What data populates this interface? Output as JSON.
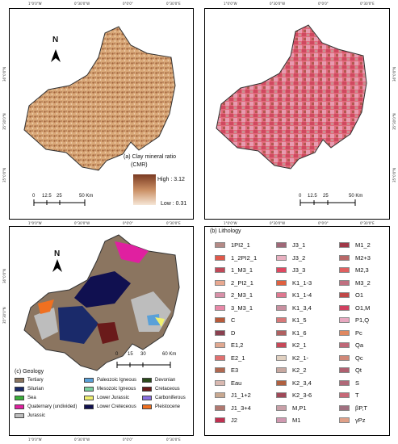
{
  "panel_a": {
    "title_line1": "(a) Clay mineral ratio",
    "title_line2": "(CMR)",
    "high": "High : 3.12",
    "low": "Low : 0.31",
    "north": "N",
    "scale": [
      "0",
      "12.5",
      "25",
      "50 Km"
    ],
    "top_ticks": [
      "1°0'0\"W",
      "0°30'0\"W",
      "0°0'0\"",
      "0°30'0\"E"
    ],
    "bottom_ticks": [
      "1°0'0\"W",
      "0°30'0\"W",
      "0°0'0\"",
      "0°30'0\"E"
    ],
    "left_ticks": [
      "36°0'0\"N",
      "35°30'0\"N",
      "35°0'0\"N",
      "34°30'0\"N"
    ],
    "colors": {
      "high": "#7a3a22",
      "low": "#f6e6d6"
    }
  },
  "panel_lith_map": {
    "top_ticks": [
      "1°0'0\"W",
      "0°30'0\"W",
      "0°0'0\"",
      "0°30'0\"E"
    ],
    "bottom_ticks": [
      "1°0'0\"W",
      "0°30'0\"W",
      "0°0'0\"",
      "0°30'0\"E"
    ],
    "right_ticks": [
      "36°0'0\"N",
      "35°30'0\"N",
      "35°0'0\"N",
      "34°30'0\"N"
    ],
    "north": "N",
    "scale": [
      "0",
      "12.5",
      "25",
      "50 Km"
    ]
  },
  "panel_c": {
    "title": "(c) Geology",
    "north": "N",
    "scale": [
      "0",
      "15",
      "30",
      "60 Km"
    ],
    "top_ticks": [
      "1°0'0\"W",
      "0°30'0\"W",
      "0°0'0\"",
      "0°30'0\"E"
    ],
    "bottom_ticks": [
      "1°0'0\"W",
      "0°30'0\"W",
      "0°0'0\"",
      "0°30'0\"E"
    ],
    "left_ticks": [
      "36°0'0\"N",
      "35°30'0\"N",
      "35°0'0\"N",
      "34°30'0\"N"
    ],
    "legend": [
      {
        "label": "Tertiary",
        "color": "#8b7560"
      },
      {
        "label": "Paleozoic Igneous",
        "color": "#5aa0d8"
      },
      {
        "label": "Devonian",
        "color": "#2a4a1a"
      },
      {
        "label": "Silurian",
        "color": "#1a2a6a"
      },
      {
        "label": "Mesozoic Igneous",
        "color": "#7ad0a0"
      },
      {
        "label": "Cretaceous",
        "color": "#6a1a1a"
      },
      {
        "label": "Sea",
        "color": "#3ab03a"
      },
      {
        "label": "Lower Jurassic",
        "color": "#f0f070"
      },
      {
        "label": "Carboniferous",
        "color": "#8a70e0"
      },
      {
        "label": "Quaternary (undivided)",
        "color": "#e020a0"
      },
      {
        "label": "Lower Creteceous",
        "color": "#101050"
      },
      {
        "label": "Pleistocene",
        "color": "#f07020"
      },
      {
        "label": "Jurassic",
        "color": "#bdbdbd"
      }
    ]
  },
  "panel_b": {
    "title": "(b) Lithology",
    "columns": [
      [
        {
          "label": "1PI2_1",
          "color": "#b48a86"
        },
        {
          "label": "1_2PI2_1",
          "color": "#e0584a"
        },
        {
          "label": "1_M3_1",
          "color": "#c04858"
        },
        {
          "label": "2_PI2_1",
          "color": "#e8a890"
        },
        {
          "label": "2_M3_1",
          "color": "#d890a8"
        },
        {
          "label": "3_M3_1",
          "color": "#e888a8"
        },
        {
          "label": "C",
          "color": "#b85a3a"
        },
        {
          "label": "D",
          "color": "#8a4050"
        },
        {
          "label": "E1,2",
          "color": "#e0a890"
        },
        {
          "label": "E2_1",
          "color": "#e07070"
        },
        {
          "label": "E3",
          "color": "#b06850"
        },
        {
          "label": "Eau",
          "color": "#d8b8b0"
        },
        {
          "label": "J1_1+2",
          "color": "#c8a890"
        },
        {
          "label": "J1_3+4",
          "color": "#b07870"
        },
        {
          "label": "J2",
          "color": "#c03050"
        }
      ],
      [
        {
          "label": "J3_1",
          "color": "#a06878"
        },
        {
          "label": "J3_2",
          "color": "#e8b0c0"
        },
        {
          "label": "J3_3",
          "color": "#e04860"
        },
        {
          "label": "K1_1-3",
          "color": "#e06040"
        },
        {
          "label": "K1_1-4",
          "color": "#e07890"
        },
        {
          "label": "K1_3,4",
          "color": "#c890a0"
        },
        {
          "label": "K1_5",
          "color": "#d87878"
        },
        {
          "label": "K1_6",
          "color": "#b06060"
        },
        {
          "label": "K2_1",
          "color": "#c84858"
        },
        {
          "label": "K2_1-",
          "color": "#e0d0c0"
        },
        {
          "label": "K2_2",
          "color": "#c8a8a0"
        },
        {
          "label": "K2_3,4",
          "color": "#b06040"
        },
        {
          "label": "K2_3-6",
          "color": "#a04858"
        },
        {
          "label": "M,P1",
          "color": "#c8a0a8"
        },
        {
          "label": "M1",
          "color": "#d098b0"
        }
      ],
      [
        {
          "label": "M1_2",
          "color": "#a03848"
        },
        {
          "label": "M2+3",
          "color": "#b86868"
        },
        {
          "label": "M2,3",
          "color": "#e06060"
        },
        {
          "label": "M3_2",
          "color": "#c07080"
        },
        {
          "label": "O1",
          "color": "#c04848"
        },
        {
          "label": "O1,M",
          "color": "#d04060"
        },
        {
          "label": "P1,Q",
          "color": "#e8a8c0"
        },
        {
          "label": "Pc",
          "color": "#e08860"
        },
        {
          "label": "Qa",
          "color": "#c06878"
        },
        {
          "label": "Qc",
          "color": "#d08878"
        },
        {
          "label": "Qt",
          "color": "#b06070"
        },
        {
          "label": "S",
          "color": "#b06878"
        },
        {
          "label": "T",
          "color": "#c86878"
        },
        {
          "label": "βP,T",
          "color": "#a07080"
        },
        {
          "label": "γPz",
          "color": "#e0a088"
        }
      ]
    ]
  }
}
